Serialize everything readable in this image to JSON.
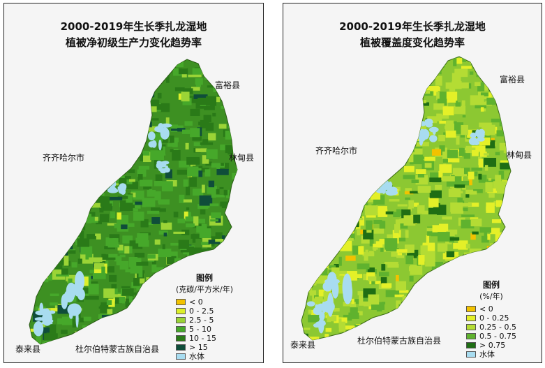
{
  "maps": [
    {
      "title_line1": "2000-2019年生长季扎龙湿地",
      "title_line2": "植被净初级生产力变化趋势率",
      "places": {
        "fuyu": "富裕县",
        "qiqihar": "齐齐哈尔市",
        "lindian": "林甸县",
        "tailai": "泰来县",
        "dorbod": "杜尔伯特蒙古族自治县"
      },
      "legend": {
        "title": "图例",
        "unit": "(克碳/平方米/年)",
        "items": [
          {
            "label": "< 0",
            "color": "#f2c200"
          },
          {
            "label": "0 - 2.5",
            "color": "#dcef2a"
          },
          {
            "label": "2.5 - 5",
            "color": "#9bd436"
          },
          {
            "label": "5 - 10",
            "color": "#46a82a"
          },
          {
            "label": "10 - 15",
            "color": "#2a7a18"
          },
          {
            "label": "> 15",
            "color": "#0f4d3a"
          },
          {
            "label": "水体",
            "color": "#a8dcf0"
          }
        ]
      }
    },
    {
      "title_line1": "2000-2019年生长季扎龙湿地",
      "title_line2": "植被覆盖度变化趋势率",
      "places": {
        "fuyu": "富裕县",
        "qiqihar": "齐齐哈尔市",
        "lindian": "林甸县",
        "tailai": "泰来县",
        "dorbod": "杜尔伯特蒙古族自治县"
      },
      "legend": {
        "title": "图例",
        "unit": "(%/年)",
        "items": [
          {
            "label": "< 0",
            "color": "#f2c200"
          },
          {
            "label": "0 - 0.25",
            "color": "#e4f028"
          },
          {
            "label": "0.25 - 0.5",
            "color": "#b4dc34"
          },
          {
            "label": "0.5 - 0.75",
            "color": "#5fb22e"
          },
          {
            "label": "> 0.75",
            "color": "#1f6e14"
          },
          {
            "label": "水体",
            "color": "#a8dcf0"
          }
        ]
      }
    }
  ]
}
